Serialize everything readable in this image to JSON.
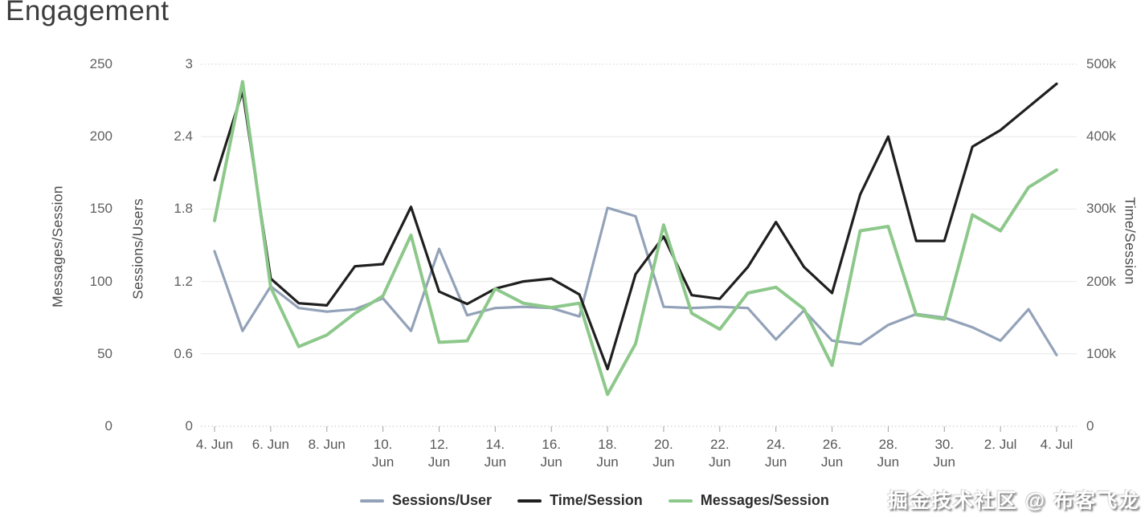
{
  "title": "Engagement",
  "watermark": "掘金技术社区 @ 布客飞龙",
  "axes": {
    "left_outer": {
      "title": "Messages/Session",
      "ticks": [
        "250",
        "200",
        "150",
        "100",
        "50",
        "0"
      ]
    },
    "left_inner": {
      "title": "Sessions/Users",
      "ticks": [
        "3",
        "2.4",
        "1.8",
        "1.2",
        "0.6",
        "0"
      ]
    },
    "right": {
      "title": "Time/Session",
      "ticks": [
        "500k",
        "400k",
        "300k",
        "200k",
        "100k",
        "0"
      ]
    },
    "x_tick_labels": [
      [
        "4. Jun"
      ],
      [
        "6. Jun"
      ],
      [
        "8. Jun"
      ],
      [
        "10.",
        "Jun"
      ],
      [
        "12.",
        "Jun"
      ],
      [
        "14.",
        "Jun"
      ],
      [
        "16.",
        "Jun"
      ],
      [
        "18.",
        "Jun"
      ],
      [
        "20.",
        "Jun"
      ],
      [
        "22.",
        "Jun"
      ],
      [
        "24.",
        "Jun"
      ],
      [
        "26.",
        "Jun"
      ],
      [
        "28.",
        "Jun"
      ],
      [
        "30.",
        "Jun"
      ],
      [
        "2. Jul"
      ],
      [
        "4. Jul"
      ]
    ]
  },
  "legend": [
    {
      "label": "Sessions/User",
      "color": "#93a2b8"
    },
    {
      "label": "Time/Session",
      "color": "#1f1f1f"
    },
    {
      "label": "Messages/Session",
      "color": "#8dc88b"
    }
  ],
  "colors": {
    "grid_solid": "#e7e7e7",
    "grid_dotted": "#cfcfcf",
    "tick_mark": "#a0a0a0",
    "tick_text": "#606060",
    "title_text": "#3c3c3c"
  },
  "chart_data": {
    "type": "line",
    "title": "Engagement",
    "x": [
      "4 Jun",
      "5 Jun",
      "6 Jun",
      "7 Jun",
      "8 Jun",
      "9 Jun",
      "10 Jun",
      "11 Jun",
      "12 Jun",
      "13 Jun",
      "14 Jun",
      "15 Jun",
      "16 Jun",
      "17 Jun",
      "18 Jun",
      "19 Jun",
      "20 Jun",
      "21 Jun",
      "22 Jun",
      "23 Jun",
      "24 Jun",
      "25 Jun",
      "26 Jun",
      "27 Jun",
      "28 Jun",
      "29 Jun",
      "30 Jun",
      "1 Jul",
      "2 Jul",
      "3 Jul",
      "4 Jul"
    ],
    "x_label_every": 2,
    "grid": "horizontal",
    "legend_position": "bottom",
    "series": [
      {
        "name": "Sessions/User",
        "color": "#93a2b8",
        "axis": "Sessions/Users",
        "ylim": [
          0,
          3
        ],
        "yticks": [
          0,
          0.6,
          1.2,
          1.8,
          2.4,
          3
        ],
        "values": [
          1.45,
          0.79,
          1.16,
          0.98,
          0.95,
          0.97,
          1.06,
          0.79,
          1.47,
          0.92,
          0.98,
          0.99,
          0.98,
          0.91,
          1.81,
          1.74,
          0.99,
          0.98,
          0.99,
          0.98,
          0.72,
          0.96,
          0.71,
          0.68,
          0.84,
          0.93,
          0.9,
          0.82,
          0.71,
          0.97,
          0.59
        ]
      },
      {
        "name": "Time/Session",
        "color": "#1f1f1f",
        "axis": "Time/Session",
        "ylim": [
          0,
          500000
        ],
        "yticks": [
          0,
          100000,
          200000,
          300000,
          400000,
          500000
        ],
        "values": [
          340000,
          463000,
          204000,
          170000,
          167000,
          221000,
          224000,
          303000,
          186000,
          169000,
          190000,
          200000,
          204000,
          182000,
          79000,
          210000,
          262000,
          181000,
          176000,
          220000,
          282000,
          220000,
          184000,
          320000,
          400000,
          256000,
          256000,
          386000,
          409000,
          441000,
          473000
        ]
      },
      {
        "name": "Messages/Session",
        "color": "#8dc88b",
        "axis": "Messages/Session",
        "ylim": [
          0,
          250
        ],
        "yticks": [
          0,
          50,
          100,
          150,
          200,
          250
        ],
        "values": [
          142,
          238,
          96,
          55,
          63,
          78,
          90,
          132,
          58,
          59,
          95,
          85,
          82,
          85,
          22,
          57,
          139,
          78,
          67,
          92,
          96,
          81,
          42,
          135,
          138,
          77,
          74,
          146,
          135,
          165,
          177
        ]
      }
    ]
  }
}
